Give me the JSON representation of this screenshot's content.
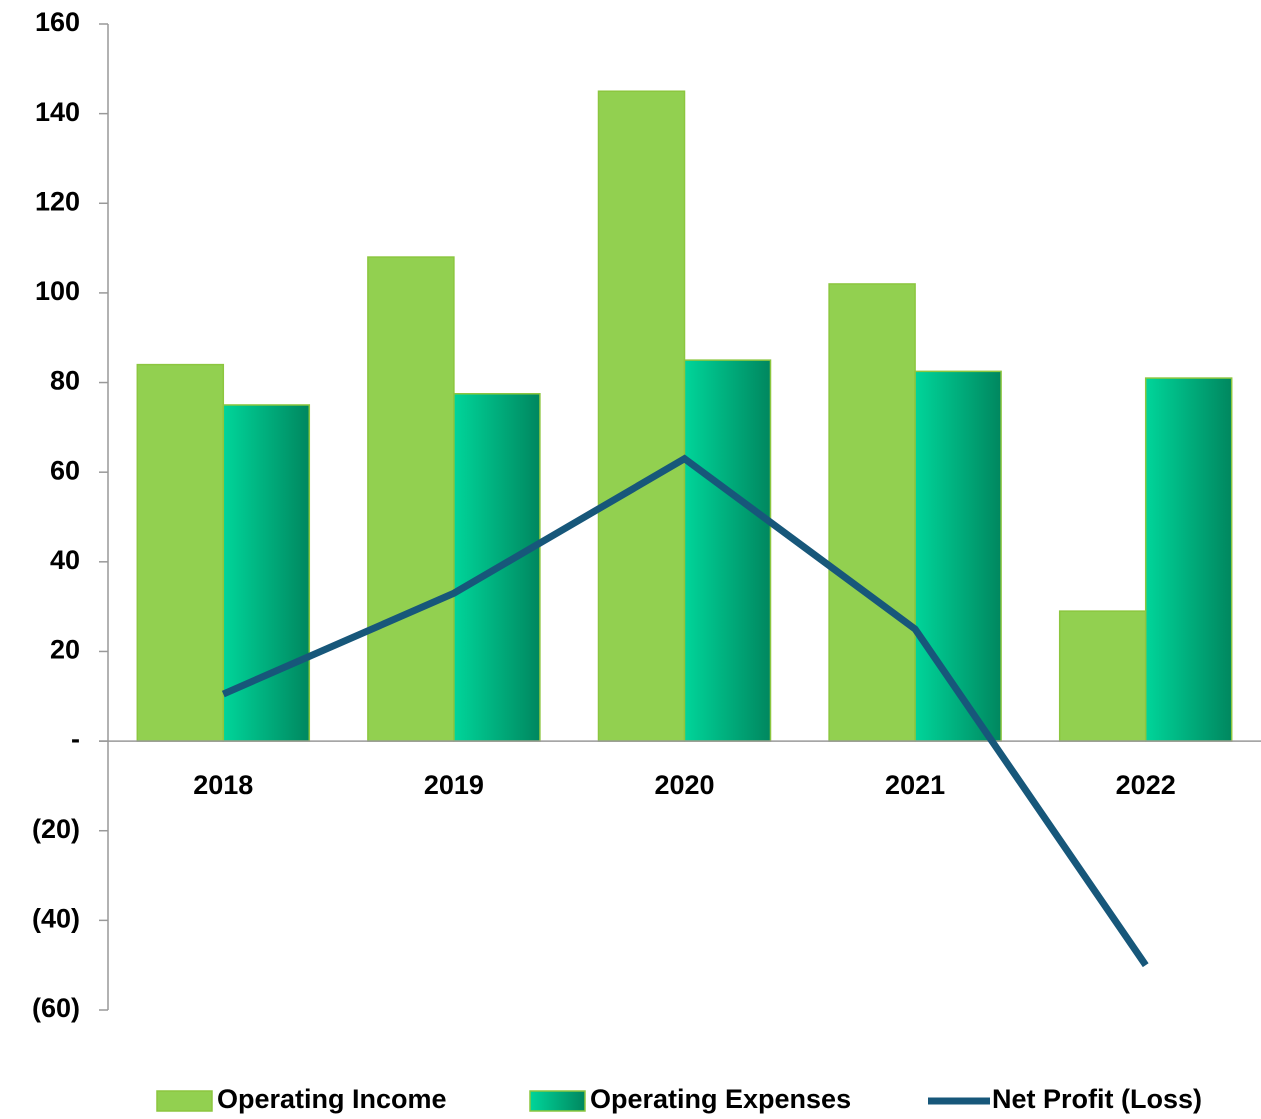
{
  "chart_data": {
    "type": "bar",
    "categories": [
      "2018",
      "2019",
      "2020",
      "2021",
      "2022"
    ],
    "series": [
      {
        "name": "Operating Income",
        "type": "bar",
        "color": "#92d050",
        "values": [
          84,
          108,
          145,
          102,
          29
        ]
      },
      {
        "name": "Operating Expenses",
        "type": "bar",
        "color": "#00b386",
        "values": [
          75,
          77.5,
          85,
          82.5,
          81
        ]
      },
      {
        "name": "Net Profit (Loss)",
        "type": "line",
        "color": "#17577a",
        "values": [
          10.5,
          33,
          63,
          25,
          -50
        ]
      }
    ],
    "ylim": [
      -60,
      160
    ],
    "yticks": [
      {
        "value": -60,
        "label": "(60)"
      },
      {
        "value": -40,
        "label": "(40)"
      },
      {
        "value": -20,
        "label": "(20)"
      },
      {
        "value": 0,
        "label": "-"
      },
      20,
      40,
      60,
      80,
      100,
      120,
      140,
      160
    ],
    "legend": "bottom"
  }
}
